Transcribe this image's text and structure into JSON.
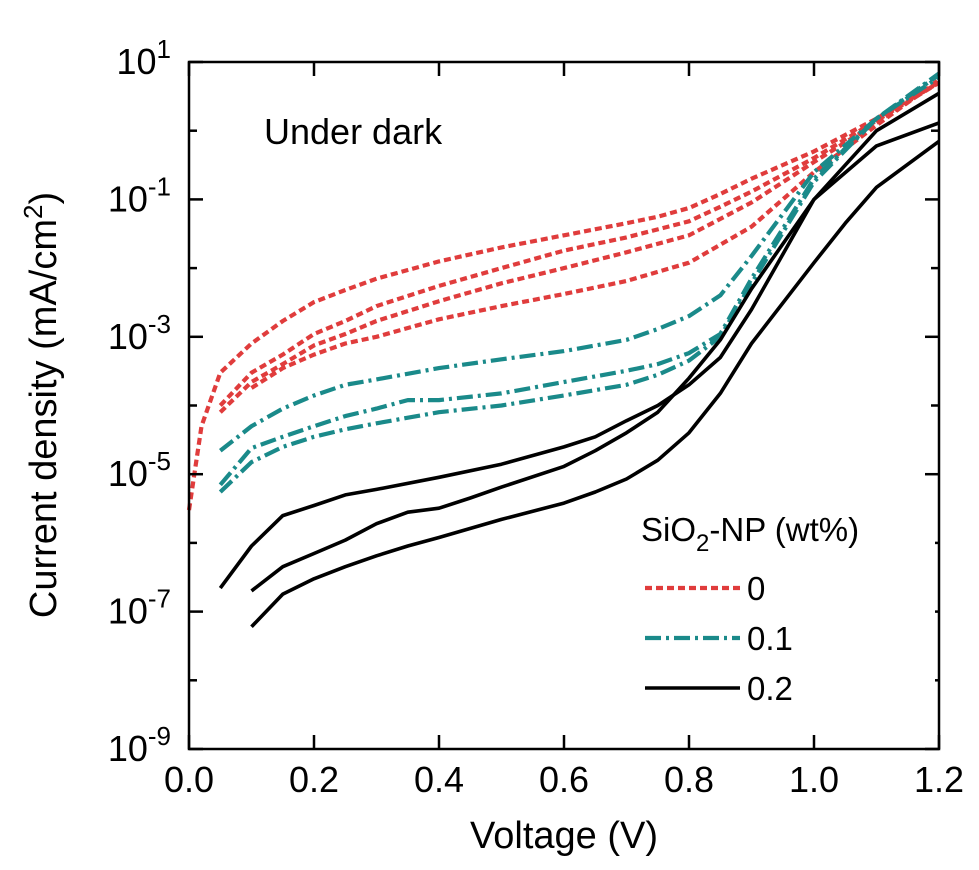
{
  "chart_data": {
    "type": "line",
    "title": "",
    "annotation": "Under dark",
    "xlabel": "Voltage (V)",
    "ylabel_parts": [
      "Current density (mA/cm",
      "2",
      ")"
    ],
    "xlim": [
      0.0,
      1.2
    ],
    "ylim_log10": [
      -9,
      1
    ],
    "y_scale": "log",
    "x_ticks": [
      0.0,
      0.2,
      0.4,
      0.6,
      0.8,
      1.0,
      1.2
    ],
    "x_tick_labels": [
      "0.0",
      "0.2",
      "0.4",
      "0.6",
      "0.8",
      "1.0",
      "1.2"
    ],
    "y_major_exponents": [
      -9,
      -7,
      -5,
      -3,
      -1,
      1
    ],
    "y_tick_base": "10",
    "y_tick_exponents": [
      "-9",
      "-7",
      "-5",
      "-3",
      "-1",
      "1"
    ],
    "y_minor_exponents": [
      -8,
      -6,
      -4,
      -2,
      0
    ],
    "legend": {
      "title_parts": [
        "SiO",
        "2",
        "-NP (wt%)"
      ],
      "placement": "bottom-right",
      "entries": [
        {
          "label": "0",
          "style": "dotted",
          "color": "#e03c3c"
        },
        {
          "label": "0.1",
          "style": "dashdot",
          "color": "#1a8a8a"
        },
        {
          "label": "0.2",
          "style": "solid",
          "color": "#000000"
        }
      ]
    },
    "series": [
      {
        "group": "0",
        "style": "dotted",
        "color": "#e03c3c",
        "x": [
          0.0,
          0.02,
          0.05,
          0.1,
          0.15,
          0.2,
          0.25,
          0.3,
          0.4,
          0.5,
          0.6,
          0.7,
          0.75,
          0.8,
          0.85,
          0.9,
          1.0,
          1.1,
          1.2
        ],
        "y": [
          3e-06,
          5e-05,
          0.0003,
          0.0008,
          0.0017,
          0.0032,
          0.0048,
          0.007,
          0.0125,
          0.02,
          0.03,
          0.045,
          0.056,
          0.075,
          0.12,
          0.2,
          0.5,
          1.5,
          5.0
        ]
      },
      {
        "group": "0",
        "style": "dotted",
        "color": "#e03c3c",
        "x": [
          0.05,
          0.1,
          0.15,
          0.2,
          0.25,
          0.3,
          0.4,
          0.5,
          0.6,
          0.7,
          0.8,
          0.85,
          0.9,
          1.0,
          1.1,
          1.2
        ],
        "y": [
          0.0001,
          0.0003,
          0.00055,
          0.0011,
          0.0017,
          0.0028,
          0.0055,
          0.01,
          0.018,
          0.028,
          0.048,
          0.078,
          0.13,
          0.4,
          1.4,
          5.0
        ]
      },
      {
        "group": "0",
        "style": "dotted",
        "color": "#e03c3c",
        "x": [
          0.05,
          0.1,
          0.15,
          0.2,
          0.25,
          0.3,
          0.4,
          0.5,
          0.6,
          0.7,
          0.8,
          0.9,
          1.0,
          1.1,
          1.2
        ],
        "y": [
          8e-05,
          0.00022,
          0.0004,
          0.00075,
          0.0011,
          0.0017,
          0.0033,
          0.006,
          0.01,
          0.017,
          0.03,
          0.09,
          0.35,
          1.3,
          5.2
        ]
      },
      {
        "group": "0",
        "style": "dotted",
        "color": "#e03c3c",
        "x": [
          0.1,
          0.15,
          0.2,
          0.25,
          0.3,
          0.4,
          0.5,
          0.6,
          0.7,
          0.8,
          0.9,
          1.0,
          1.1,
          1.2
        ],
        "y": [
          0.00018,
          0.00035,
          0.00055,
          0.0008,
          0.001,
          0.0018,
          0.0028,
          0.0042,
          0.0065,
          0.012,
          0.04,
          0.25,
          1.2,
          5.5
        ]
      },
      {
        "group": "0.1",
        "style": "dashdot",
        "color": "#1a8a8a",
        "x": [
          0.05,
          0.1,
          0.15,
          0.2,
          0.25,
          0.3,
          0.4,
          0.5,
          0.6,
          0.7,
          0.75,
          0.8,
          0.85,
          0.9,
          1.0,
          1.1,
          1.2
        ],
        "y": [
          2.2e-05,
          5e-05,
          9e-05,
          0.00014,
          0.0002,
          0.00024,
          0.00035,
          0.00047,
          0.00062,
          0.0009,
          0.0013,
          0.002,
          0.004,
          0.015,
          0.25,
          1.5,
          6.0
        ]
      },
      {
        "group": "0.1",
        "style": "dashdot",
        "color": "#1a8a8a",
        "x": [
          0.05,
          0.1,
          0.15,
          0.2,
          0.25,
          0.3,
          0.35,
          0.4,
          0.5,
          0.6,
          0.7,
          0.75,
          0.8,
          0.85,
          0.9,
          1.0,
          1.1,
          1.2
        ],
        "y": [
          7e-06,
          2.4e-05,
          3.5e-05,
          5e-05,
          7e-05,
          9e-05,
          0.00012,
          0.00012,
          0.00015,
          0.00022,
          0.00032,
          0.0004,
          0.00058,
          0.0011,
          0.007,
          0.2,
          1.5,
          6.5
        ]
      },
      {
        "group": "0.1",
        "style": "dashdot",
        "color": "#1a8a8a",
        "x": [
          0.05,
          0.1,
          0.15,
          0.2,
          0.25,
          0.3,
          0.4,
          0.5,
          0.6,
          0.7,
          0.75,
          0.8,
          0.85,
          0.9,
          1.0,
          1.1,
          1.2
        ],
        "y": [
          5.5e-06,
          1.5e-05,
          2.5e-05,
          3.5e-05,
          4.5e-05,
          5.5e-05,
          8e-05,
          0.0001,
          0.00014,
          0.0002,
          0.00028,
          0.00045,
          0.001,
          0.006,
          0.18,
          1.5,
          6.8
        ]
      },
      {
        "group": "0.2",
        "style": "solid",
        "color": "#000000",
        "x": [
          0.05,
          0.1,
          0.15,
          0.2,
          0.25,
          0.3,
          0.4,
          0.5,
          0.6,
          0.65,
          0.7,
          0.75,
          0.8,
          0.85,
          0.9,
          1.0,
          1.1,
          1.2
        ],
        "y": [
          2.2e-07,
          9e-07,
          2.5e-06,
          3.5e-06,
          5e-06,
          6e-06,
          9e-06,
          1.4e-05,
          2.5e-05,
          3.5e-05,
          6e-05,
          0.0001,
          0.0002,
          0.0005,
          0.0025,
          0.1,
          1.0,
          3.5
        ]
      },
      {
        "group": "0.2",
        "style": "solid",
        "color": "#000000",
        "x": [
          0.1,
          0.15,
          0.2,
          0.25,
          0.3,
          0.35,
          0.4,
          0.45,
          0.5,
          0.6,
          0.65,
          0.7,
          0.75,
          0.8,
          0.85,
          0.9,
          1.0,
          1.1,
          1.2
        ],
        "y": [
          2e-07,
          4.5e-07,
          7e-07,
          1.1e-06,
          1.9e-06,
          2.8e-06,
          3.2e-06,
          4.5e-06,
          6.5e-06,
          1.3e-05,
          2.2e-05,
          4e-05,
          8e-05,
          0.00025,
          0.0009,
          0.005,
          0.1,
          0.6,
          1.3
        ]
      },
      {
        "group": "0.2",
        "style": "solid",
        "color": "#000000",
        "x": [
          0.1,
          0.15,
          0.2,
          0.25,
          0.3,
          0.35,
          0.4,
          0.5,
          0.6,
          0.65,
          0.7,
          0.75,
          0.8,
          0.85,
          0.9,
          1.0,
          1.05,
          1.1,
          1.2
        ],
        "y": [
          6e-08,
          1.8e-07,
          3e-07,
          4.5e-07,
          6.5e-07,
          9e-07,
          1.2e-06,
          2.2e-06,
          3.8e-06,
          5.5e-06,
          8.5e-06,
          1.6e-05,
          4e-05,
          0.00015,
          0.0008,
          0.012,
          0.045,
          0.15,
          0.7
        ]
      }
    ]
  }
}
